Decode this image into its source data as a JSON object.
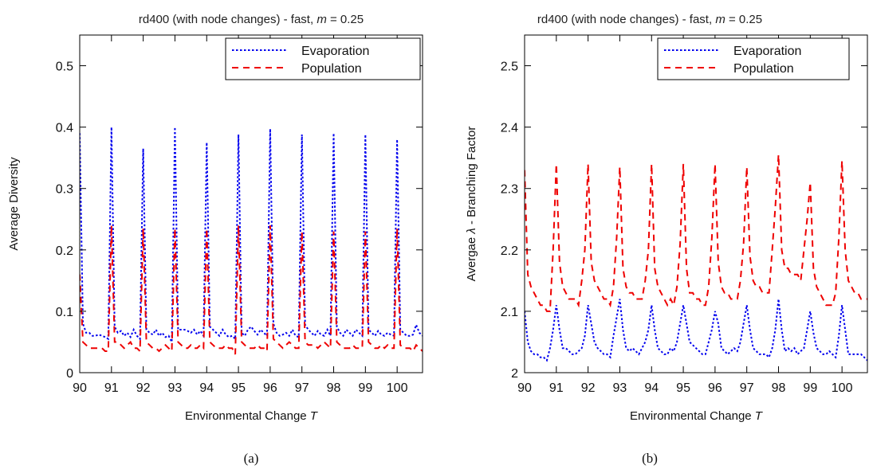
{
  "colors": {
    "evaporation": "#0000ee",
    "population": "#ee0000",
    "axis": "#000000"
  },
  "chart_data": [
    {
      "type": "line",
      "caption": "(a)",
      "title": "rd400 (with node changes) - fast, ",
      "title_math_var": "m",
      "title_math_rest": " = 0.25",
      "xlabel": "Environmental Change ",
      "xlabel_var": "T",
      "ylabel": "Average Diversity",
      "xlim": [
        90,
        100.8
      ],
      "ylim": [
        0,
        0.55
      ],
      "xticks": [
        90,
        91,
        92,
        93,
        94,
        95,
        96,
        97,
        98,
        99,
        100
      ],
      "xtick_labels": [
        "90",
        "91",
        "92",
        "93",
        "94",
        "95",
        "96",
        "97",
        "98",
        "99",
        "100"
      ],
      "yticks": [
        0,
        0.1,
        0.2,
        0.3,
        0.4,
        0.5
      ],
      "ytick_labels": [
        "0",
        "0.1",
        "0.2",
        "0.3",
        "0.4",
        "0.5"
      ],
      "legend_position": "top-right",
      "series": [
        {
          "name": "Evaporation",
          "style": "dotted",
          "x": [
            90.0,
            90.1,
            90.2,
            90.3,
            90.4,
            90.5,
            90.6,
            90.7,
            90.8,
            90.9,
            91.0,
            91.1,
            91.2,
            91.3,
            91.4,
            91.5,
            91.6,
            91.7,
            91.8,
            91.9,
            92.0,
            92.1,
            92.2,
            92.3,
            92.4,
            92.5,
            92.6,
            92.7,
            92.8,
            92.9,
            93.0,
            93.1,
            93.2,
            93.3,
            93.4,
            93.5,
            93.6,
            93.7,
            93.8,
            93.9,
            94.0,
            94.1,
            94.2,
            94.3,
            94.4,
            94.5,
            94.6,
            94.7,
            94.8,
            94.9,
            95.0,
            95.1,
            95.2,
            95.3,
            95.4,
            95.5,
            95.6,
            95.7,
            95.8,
            95.9,
            96.0,
            96.1,
            96.2,
            96.3,
            96.4,
            96.5,
            96.6,
            96.7,
            96.8,
            96.9,
            97.0,
            97.1,
            97.2,
            97.3,
            97.4,
            97.5,
            97.6,
            97.7,
            97.8,
            97.9,
            98.0,
            98.1,
            98.2,
            98.3,
            98.4,
            98.5,
            98.6,
            98.7,
            98.8,
            98.9,
            99.0,
            99.1,
            99.2,
            99.3,
            99.4,
            99.5,
            99.6,
            99.7,
            99.8,
            99.9,
            100.0,
            100.1,
            100.2,
            100.3,
            100.4,
            100.5,
            100.6,
            100.7,
            100.8
          ],
          "values": [
            0.39,
            0.08,
            0.065,
            0.065,
            0.06,
            0.06,
            0.062,
            0.06,
            0.058,
            0.055,
            0.4,
            0.075,
            0.065,
            0.068,
            0.06,
            0.065,
            0.058,
            0.07,
            0.06,
            0.055,
            0.365,
            0.07,
            0.065,
            0.062,
            0.07,
            0.06,
            0.065,
            0.058,
            0.06,
            0.05,
            0.4,
            0.07,
            0.07,
            0.07,
            0.068,
            0.065,
            0.07,
            0.062,
            0.068,
            0.06,
            0.375,
            0.075,
            0.07,
            0.065,
            0.06,
            0.07,
            0.062,
            0.058,
            0.06,
            0.055,
            0.388,
            0.065,
            0.06,
            0.07,
            0.075,
            0.068,
            0.062,
            0.07,
            0.065,
            0.06,
            0.397,
            0.08,
            0.065,
            0.06,
            0.062,
            0.065,
            0.06,
            0.07,
            0.06,
            0.058,
            0.388,
            0.078,
            0.07,
            0.065,
            0.06,
            0.068,
            0.062,
            0.06,
            0.07,
            0.06,
            0.39,
            0.075,
            0.065,
            0.06,
            0.07,
            0.065,
            0.06,
            0.07,
            0.065,
            0.06,
            0.388,
            0.07,
            0.065,
            0.06,
            0.068,
            0.062,
            0.06,
            0.065,
            0.062,
            0.06,
            0.38,
            0.07,
            0.065,
            0.06,
            0.06,
            0.062,
            0.078,
            0.065,
            0.06
          ]
        },
        {
          "name": "Population",
          "style": "dashed",
          "x": [
            90.0,
            90.1,
            90.2,
            90.3,
            90.4,
            90.5,
            90.6,
            90.7,
            90.8,
            90.9,
            91.0,
            91.1,
            91.2,
            91.3,
            91.4,
            91.5,
            91.6,
            91.7,
            91.8,
            91.9,
            92.0,
            92.1,
            92.2,
            92.3,
            92.4,
            92.5,
            92.6,
            92.7,
            92.8,
            92.9,
            93.0,
            93.1,
            93.2,
            93.3,
            93.4,
            93.5,
            93.6,
            93.7,
            93.8,
            93.9,
            94.0,
            94.1,
            94.2,
            94.3,
            94.4,
            94.5,
            94.6,
            94.7,
            94.8,
            94.9,
            95.0,
            95.1,
            95.2,
            95.3,
            95.4,
            95.5,
            95.6,
            95.7,
            95.8,
            95.9,
            96.0,
            96.1,
            96.2,
            96.3,
            96.4,
            96.5,
            96.6,
            96.7,
            96.8,
            96.9,
            97.0,
            97.1,
            97.2,
            97.3,
            97.4,
            97.5,
            97.6,
            97.7,
            97.8,
            97.9,
            98.0,
            98.1,
            98.2,
            98.3,
            98.4,
            98.5,
            98.6,
            98.7,
            98.8,
            98.9,
            99.0,
            99.1,
            99.2,
            99.3,
            99.4,
            99.5,
            99.6,
            99.7,
            99.8,
            99.9,
            100.0,
            100.1,
            100.2,
            100.3,
            100.4,
            100.5,
            100.6,
            100.7,
            100.8
          ],
          "values": [
            0.16,
            0.05,
            0.045,
            0.04,
            0.04,
            0.04,
            0.04,
            0.04,
            0.035,
            0.035,
            0.24,
            0.05,
            0.05,
            0.045,
            0.04,
            0.045,
            0.05,
            0.04,
            0.04,
            0.035,
            0.235,
            0.05,
            0.045,
            0.04,
            0.04,
            0.035,
            0.04,
            0.045,
            0.04,
            0.035,
            0.235,
            0.05,
            0.045,
            0.04,
            0.04,
            0.045,
            0.04,
            0.04,
            0.045,
            0.04,
            0.235,
            0.05,
            0.045,
            0.04,
            0.04,
            0.04,
            0.045,
            0.04,
            0.04,
            0.03,
            0.24,
            0.05,
            0.045,
            0.04,
            0.04,
            0.04,
            0.045,
            0.04,
            0.04,
            0.035,
            0.24,
            0.055,
            0.05,
            0.045,
            0.04,
            0.045,
            0.05,
            0.045,
            0.04,
            0.04,
            0.23,
            0.05,
            0.045,
            0.045,
            0.045,
            0.04,
            0.045,
            0.05,
            0.045,
            0.04,
            0.23,
            0.05,
            0.045,
            0.04,
            0.04,
            0.04,
            0.045,
            0.04,
            0.04,
            0.04,
            0.23,
            0.05,
            0.045,
            0.04,
            0.04,
            0.045,
            0.04,
            0.045,
            0.04,
            0.04,
            0.235,
            0.045,
            0.04,
            0.04,
            0.04,
            0.035,
            0.045,
            0.04,
            0.035
          ]
        }
      ]
    },
    {
      "type": "line",
      "caption": "(b)",
      "title": "rd400 (with node changes) - fast, ",
      "title_math_var": "m",
      "title_math_rest": " = 0.25",
      "xlabel": "Environmental Change ",
      "xlabel_var": "T",
      "ylabel_part1": "Avergae ",
      "ylabel_symbol": "λ",
      "ylabel_part2": " - Branching Factor",
      "xlim": [
        90,
        100.8
      ],
      "ylim": [
        2.0,
        2.55
      ],
      "xticks": [
        90,
        91,
        92,
        93,
        94,
        95,
        96,
        97,
        98,
        99,
        100
      ],
      "xtick_labels": [
        "90",
        "91",
        "92",
        "93",
        "94",
        "95",
        "96",
        "97",
        "98",
        "99",
        "100"
      ],
      "yticks": [
        2.0,
        2.1,
        2.2,
        2.3,
        2.4,
        2.5
      ],
      "ytick_labels": [
        "2",
        "2.1",
        "2.2",
        "2.3",
        "2.4",
        "2.5"
      ],
      "legend_position": "top-right",
      "series": [
        {
          "name": "Evaporation",
          "style": "dotted",
          "x": [
            90.0,
            90.1,
            90.2,
            90.3,
            90.4,
            90.5,
            90.6,
            90.7,
            90.8,
            90.9,
            91.0,
            91.1,
            91.2,
            91.3,
            91.4,
            91.5,
            91.6,
            91.7,
            91.8,
            91.9,
            92.0,
            92.1,
            92.2,
            92.3,
            92.4,
            92.5,
            92.6,
            92.7,
            92.8,
            92.9,
            93.0,
            93.1,
            93.2,
            93.3,
            93.4,
            93.5,
            93.6,
            93.7,
            93.8,
            93.9,
            94.0,
            94.1,
            94.2,
            94.3,
            94.4,
            94.5,
            94.6,
            94.7,
            94.8,
            94.9,
            95.0,
            95.1,
            95.2,
            95.3,
            95.4,
            95.5,
            95.6,
            95.7,
            95.8,
            95.9,
            96.0,
            96.1,
            96.2,
            96.3,
            96.4,
            96.5,
            96.6,
            96.7,
            96.8,
            96.9,
            97.0,
            97.1,
            97.2,
            97.3,
            97.4,
            97.5,
            97.6,
            97.7,
            97.8,
            97.9,
            98.0,
            98.1,
            98.2,
            98.3,
            98.4,
            98.5,
            98.6,
            98.7,
            98.8,
            98.9,
            99.0,
            99.1,
            99.2,
            99.3,
            99.4,
            99.5,
            99.6,
            99.7,
            99.8,
            99.9,
            100.0,
            100.1,
            100.2,
            100.3,
            100.4,
            100.5,
            100.6,
            100.7,
            100.8
          ],
          "values": [
            2.1,
            2.05,
            2.035,
            2.03,
            2.03,
            2.025,
            2.025,
            2.02,
            2.04,
            2.07,
            2.11,
            2.07,
            2.04,
            2.04,
            2.035,
            2.03,
            2.03,
            2.035,
            2.04,
            2.06,
            2.11,
            2.08,
            2.05,
            2.04,
            2.035,
            2.03,
            2.03,
            2.025,
            2.06,
            2.09,
            2.12,
            2.07,
            2.04,
            2.035,
            2.04,
            2.035,
            2.03,
            2.04,
            2.05,
            2.07,
            2.11,
            2.07,
            2.04,
            2.035,
            2.03,
            2.03,
            2.04,
            2.035,
            2.05,
            2.08,
            2.11,
            2.08,
            2.05,
            2.045,
            2.04,
            2.035,
            2.03,
            2.03,
            2.05,
            2.07,
            2.1,
            2.08,
            2.04,
            2.035,
            2.03,
            2.035,
            2.04,
            2.035,
            2.05,
            2.08,
            2.11,
            2.07,
            2.04,
            2.035,
            2.03,
            2.03,
            2.03,
            2.025,
            2.04,
            2.07,
            2.12,
            2.07,
            2.035,
            2.04,
            2.035,
            2.04,
            2.03,
            2.035,
            2.04,
            2.07,
            2.1,
            2.065,
            2.04,
            2.035,
            2.03,
            2.03,
            2.035,
            2.03,
            2.025,
            2.06,
            2.11,
            2.07,
            2.03,
            2.03,
            2.03,
            2.03,
            2.03,
            2.025,
            2.02
          ]
        },
        {
          "name": "Population",
          "style": "dashed",
          "x": [
            90.0,
            90.1,
            90.2,
            90.3,
            90.4,
            90.5,
            90.6,
            90.7,
            90.8,
            90.9,
            91.0,
            91.1,
            91.2,
            91.3,
            91.4,
            91.5,
            91.6,
            91.7,
            91.8,
            91.9,
            92.0,
            92.1,
            92.2,
            92.3,
            92.4,
            92.5,
            92.6,
            92.7,
            92.8,
            92.9,
            93.0,
            93.1,
            93.2,
            93.3,
            93.4,
            93.5,
            93.6,
            93.7,
            93.8,
            93.9,
            94.0,
            94.1,
            94.2,
            94.3,
            94.4,
            94.5,
            94.6,
            94.7,
            94.8,
            94.9,
            95.0,
            95.1,
            95.2,
            95.3,
            95.4,
            95.5,
            95.6,
            95.7,
            95.8,
            95.9,
            96.0,
            96.1,
            96.2,
            96.3,
            96.4,
            96.5,
            96.6,
            96.7,
            96.8,
            96.9,
            97.0,
            97.1,
            97.2,
            97.3,
            97.4,
            97.5,
            97.6,
            97.7,
            97.8,
            97.9,
            98.0,
            98.1,
            98.2,
            98.3,
            98.4,
            98.5,
            98.6,
            98.7,
            98.8,
            98.9,
            99.0,
            99.1,
            99.2,
            99.3,
            99.4,
            99.5,
            99.6,
            99.7,
            99.8,
            99.9,
            100.0,
            100.1,
            100.2,
            100.3,
            100.4,
            100.5,
            100.6,
            100.7,
            100.8
          ],
          "values": [
            2.33,
            2.16,
            2.14,
            2.13,
            2.12,
            2.11,
            2.11,
            2.1,
            2.1,
            2.2,
            2.34,
            2.18,
            2.14,
            2.13,
            2.12,
            2.12,
            2.12,
            2.11,
            2.15,
            2.2,
            2.34,
            2.18,
            2.15,
            2.14,
            2.13,
            2.12,
            2.12,
            2.11,
            2.14,
            2.22,
            2.335,
            2.17,
            2.14,
            2.13,
            2.13,
            2.12,
            2.12,
            2.12,
            2.15,
            2.2,
            2.34,
            2.17,
            2.14,
            2.13,
            2.12,
            2.11,
            2.12,
            2.11,
            2.14,
            2.21,
            2.34,
            2.17,
            2.13,
            2.13,
            2.12,
            2.12,
            2.11,
            2.11,
            2.14,
            2.22,
            2.34,
            2.18,
            2.14,
            2.13,
            2.13,
            2.12,
            2.12,
            2.12,
            2.15,
            2.21,
            2.335,
            2.19,
            2.15,
            2.14,
            2.14,
            2.13,
            2.13,
            2.13,
            2.2,
            2.27,
            2.355,
            2.2,
            2.17,
            2.17,
            2.16,
            2.16,
            2.16,
            2.15,
            2.2,
            2.25,
            2.31,
            2.17,
            2.14,
            2.13,
            2.12,
            2.11,
            2.11,
            2.11,
            2.13,
            2.22,
            2.345,
            2.2,
            2.15,
            2.14,
            2.13,
            2.13,
            2.12,
            2.12,
            2.12
          ]
        }
      ]
    }
  ]
}
